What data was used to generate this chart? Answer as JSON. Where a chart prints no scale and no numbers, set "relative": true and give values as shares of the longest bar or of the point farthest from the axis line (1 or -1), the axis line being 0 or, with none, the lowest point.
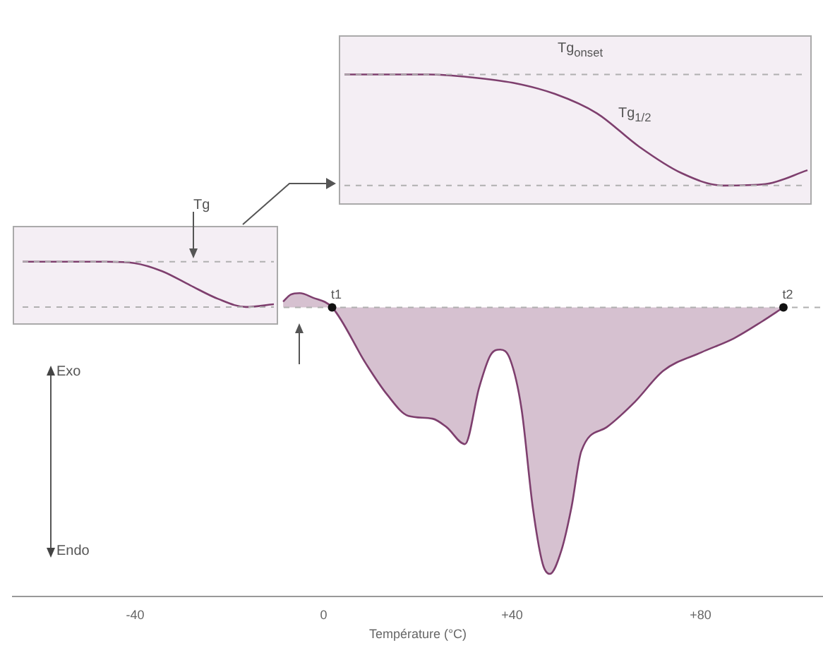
{
  "chart_data": [
    {
      "type": "area",
      "xlabel": "Température (°C)",
      "relative": true,
      "x": [
        -8.6,
        -7.0,
        -5.1,
        -2.4,
        1.8,
        9.0,
        13.5,
        18.0,
        23.1,
        26.1,
        30.0,
        33.0,
        35.4,
        37.5,
        39.6,
        42.0,
        44.4,
        46.5,
        48.0,
        50.5,
        52.6,
        54.7,
        60.1,
        66.1,
        72.1,
        80.2,
        87.1,
        93.1,
        97.6
      ],
      "series": [
        {
          "color": "#7e3f6e",
          "values": [
            0.972,
            0.995,
            1.0,
            0.986,
            0.953,
            0.767,
            0.665,
            0.595,
            0.586,
            0.558,
            0.502,
            0.688,
            0.795,
            0.814,
            0.781,
            0.619,
            0.293,
            0.107,
            0.074,
            0.153,
            0.293,
            0.479,
            0.558,
            0.642,
            0.744,
            0.805,
            0.851,
            0.907,
            0.953
          ]
        }
      ],
      "xlim": [
        -66,
        106
      ],
      "xticks": [
        -40,
        0,
        {
          "value": 40,
          "label": "+40"
        },
        {
          "value": 80,
          "label": "+80"
        }
      ],
      "ref_lines": [
        {
          "axis": "y",
          "value": 0.953,
          "line_style": "dashed",
          "color": "#b0b0b0"
        }
      ],
      "annotations": [
        "Exo",
        "Endo",
        {
          "text": "t1",
          "x": 1.8,
          "y": 0.953
        },
        {
          "text": "t2",
          "x": 97.6,
          "y": 0.953
        }
      ],
      "grid": false,
      "legend": false
    },
    {
      "type": "line",
      "relative": true,
      "categories": [
        null,
        null,
        null,
        null,
        null,
        null,
        null,
        null,
        null,
        null
      ],
      "series": [
        {
          "color": "#7e3f6e",
          "values": [
            1,
            1,
            1,
            1,
            0.97,
            0.79,
            0.48,
            0.18,
            0,
            0.06
          ]
        }
      ],
      "ref_lines": [
        {
          "axis": "y",
          "value": 1,
          "line_style": "dashed",
          "color": "#b0b0b0"
        },
        {
          "axis": "y",
          "value": 0,
          "line_style": "dashed",
          "color": "#b0b0b0"
        }
      ],
      "annotations": [
        "Tg"
      ],
      "tick_labels": false,
      "legend": false
    },
    {
      "type": "line",
      "relative": true,
      "categories": [
        null,
        null,
        null,
        null,
        null,
        null,
        null,
        null,
        null,
        null,
        null,
        null
      ],
      "series": [
        {
          "color": "#7e3f6e",
          "values": [
            1,
            1,
            1,
            0.975,
            0.925,
            0.825,
            0.65,
            0.35,
            0.113,
            0,
            0.013,
            0.138
          ]
        }
      ],
      "ref_lines": [
        {
          "axis": "y",
          "value": 1,
          "line_style": "dashed",
          "color": "#b0b0b0"
        },
        {
          "axis": "y",
          "value": 0,
          "line_style": "dashed",
          "color": "#b0b0b0"
        }
      ],
      "annotations": [
        "Tg$_{onset}$",
        "Tg$_{1/2}$"
      ],
      "tick_labels": false,
      "legend": false
    }
  ]
}
